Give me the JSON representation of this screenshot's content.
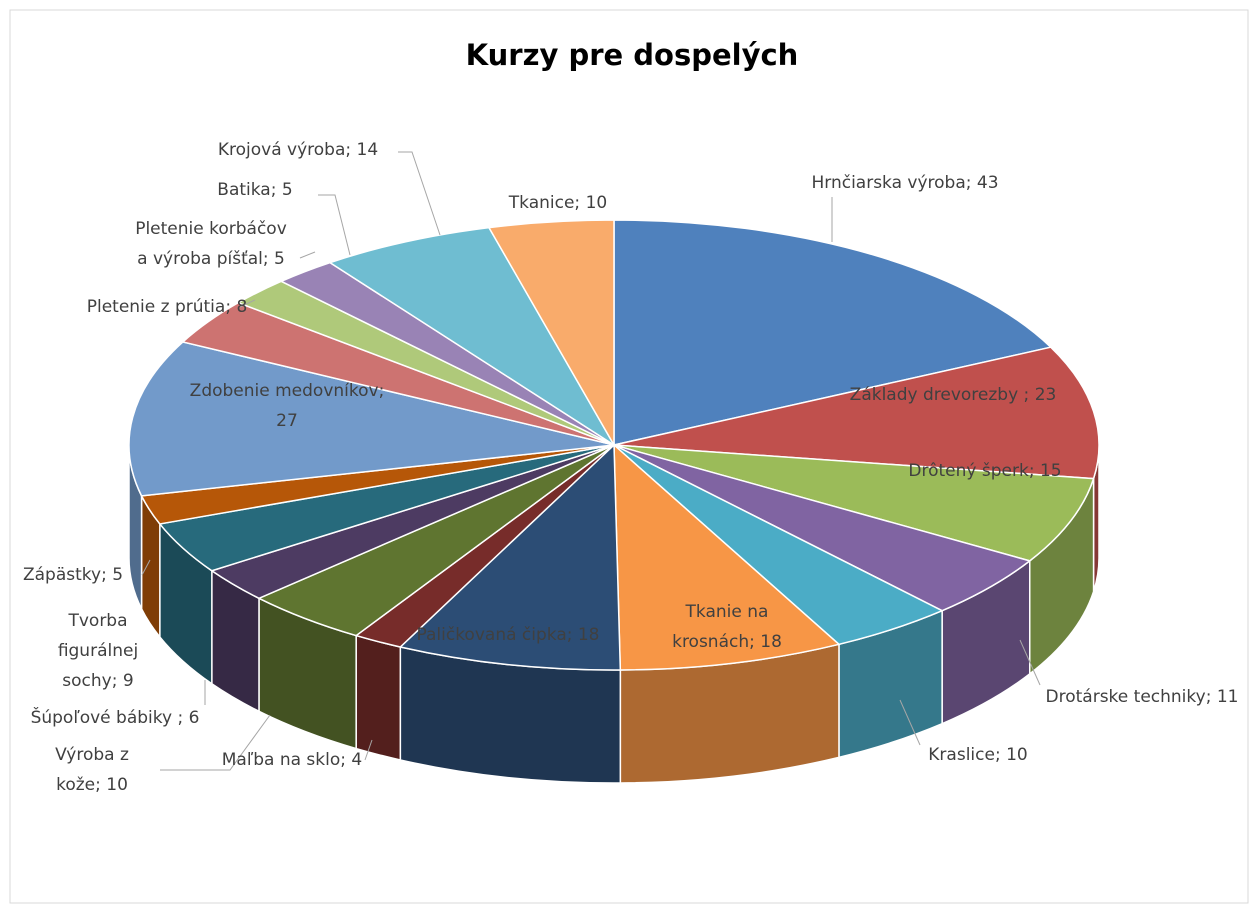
{
  "chart_data": {
    "type": "pie3d",
    "title": "Kurzy pre dospelých",
    "values": [
      43,
      23,
      15,
      11,
      10,
      18,
      18,
      4,
      10,
      6,
      9,
      5,
      27,
      8,
      5,
      5,
      14,
      10
    ],
    "value_labels": [
      "Hrnčiarska výroba; 43",
      "Základy drevorezby ; 23",
      "Drôtený šperk; 15",
      "Drotárske techniky; 11",
      "Kraslice; 10",
      "Tkanie na\nkrosnách; 18",
      "Paličkovaná čipka; 18",
      "Maľba na sklo; 4",
      "Výroba z\nkože; 10",
      "Šúpoľové bábiky ; 6",
      "Tvorba\nfigurálnej\nsochy; 9",
      "Zápästky; 5",
      "Zdobenie medovníkov;\n27",
      "Pletenie z prútia; 8",
      "Pletenie korbáčov\na výroba píšťal; 5",
      "Batika; 5",
      "Krojová výroba; 14",
      "Tkanice; 10"
    ],
    "colors": [
      "#4f81bd",
      "#c0504d",
      "#9bbb59",
      "#8064a2",
      "#4bacc6",
      "#f79646",
      "#2c4d75",
      "#772c2a",
      "#5f7530",
      "#4d3b62",
      "#276a7c",
      "#b65708",
      "#729aca",
      "#cd7371",
      "#afc97a",
      "#9983b5",
      "#6fbdd1",
      "#f9ab6b"
    ]
  }
}
